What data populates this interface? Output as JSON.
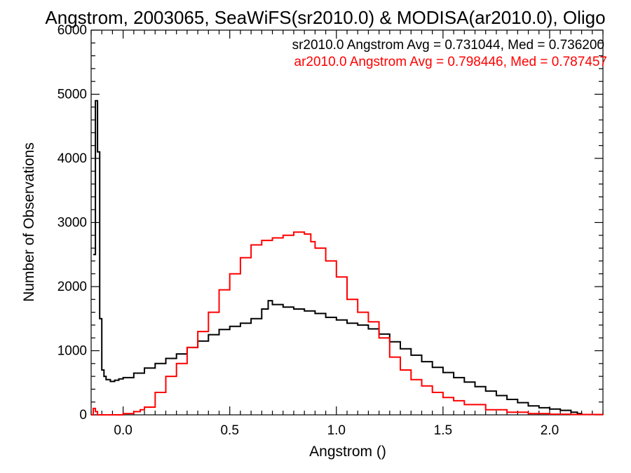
{
  "chart_data": {
    "type": "line",
    "title": "Angstrom, 2003065, SeaWiFS(sr2010.0) & MODISA(ar2010.0), Oligo",
    "xlabel": "Angstrom ()",
    "ylabel": "Number of Observations",
    "xlim": [
      -0.15,
      2.25
    ],
    "ylim": [
      0,
      6000
    ],
    "x_ticks": [
      0.0,
      0.5,
      1.0,
      1.5,
      2.0
    ],
    "x_tick_labels": [
      "0.0",
      "0.5",
      "1.0",
      "1.5",
      "2.0"
    ],
    "y_ticks": [
      0,
      1000,
      2000,
      3000,
      4000,
      5000,
      6000
    ],
    "y_tick_labels": [
      "0",
      "1000",
      "2000",
      "3000",
      "4000",
      "5000",
      "6000"
    ],
    "grid": false,
    "legend_placement": "top-right",
    "annotations": [
      {
        "text": "sr2010.0 Angstrom Avg = 0.731044, Med = 0.736200",
        "color": "#000000"
      },
      {
        "text": "ar2010.0 Angstrom Avg = 0.798446, Med = 0.787457",
        "color": "#ff0000"
      }
    ],
    "series": [
      {
        "color": "#000000",
        "x": [
          -0.14,
          -0.13,
          -0.12,
          -0.11,
          -0.1,
          -0.09,
          -0.08,
          -0.06,
          -0.04,
          -0.02,
          0.0,
          0.05,
          0.1,
          0.15,
          0.2,
          0.25,
          0.3,
          0.35,
          0.4,
          0.45,
          0.5,
          0.55,
          0.6,
          0.65,
          0.68,
          0.7,
          0.75,
          0.8,
          0.85,
          0.9,
          0.95,
          1.0,
          1.05,
          1.1,
          1.15,
          1.2,
          1.25,
          1.3,
          1.35,
          1.4,
          1.45,
          1.5,
          1.55,
          1.6,
          1.65,
          1.7,
          1.75,
          1.8,
          1.85,
          1.9,
          1.95,
          2.0,
          2.05,
          2.1,
          2.13,
          2.15
        ],
        "y": [
          2500,
          4900,
          4100,
          1500,
          700,
          600,
          550,
          520,
          540,
          560,
          580,
          650,
          730,
          800,
          880,
          950,
          1050,
          1150,
          1250,
          1330,
          1380,
          1430,
          1500,
          1650,
          1780,
          1720,
          1680,
          1650,
          1620,
          1580,
          1520,
          1480,
          1430,
          1400,
          1340,
          1260,
          1140,
          1030,
          930,
          830,
          740,
          660,
          580,
          510,
          440,
          370,
          300,
          240,
          190,
          140,
          110,
          90,
          70,
          40,
          20,
          0
        ]
      },
      {
        "color": "#ff0000",
        "x": [
          -0.15,
          -0.14,
          -0.13,
          -0.12,
          -0.1,
          -0.05,
          0.0,
          0.05,
          0.08,
          0.1,
          0.15,
          0.2,
          0.25,
          0.3,
          0.35,
          0.4,
          0.45,
          0.5,
          0.55,
          0.6,
          0.65,
          0.7,
          0.75,
          0.8,
          0.85,
          0.88,
          0.9,
          0.95,
          1.0,
          1.05,
          1.1,
          1.15,
          1.2,
          1.25,
          1.3,
          1.35,
          1.4,
          1.45,
          1.5,
          1.55,
          1.6,
          1.7,
          1.8,
          1.9,
          2.0,
          2.1,
          2.25
        ],
        "y": [
          0,
          100,
          50,
          0,
          0,
          0,
          20,
          50,
          80,
          120,
          350,
          600,
          800,
          1050,
          1300,
          1600,
          1950,
          2200,
          2450,
          2650,
          2720,
          2760,
          2800,
          2850,
          2820,
          2700,
          2600,
          2400,
          2150,
          1800,
          1600,
          1450,
          1200,
          900,
          700,
          550,
          450,
          350,
          270,
          220,
          160,
          80,
          40,
          20,
          10,
          5,
          0
        ]
      }
    ]
  }
}
